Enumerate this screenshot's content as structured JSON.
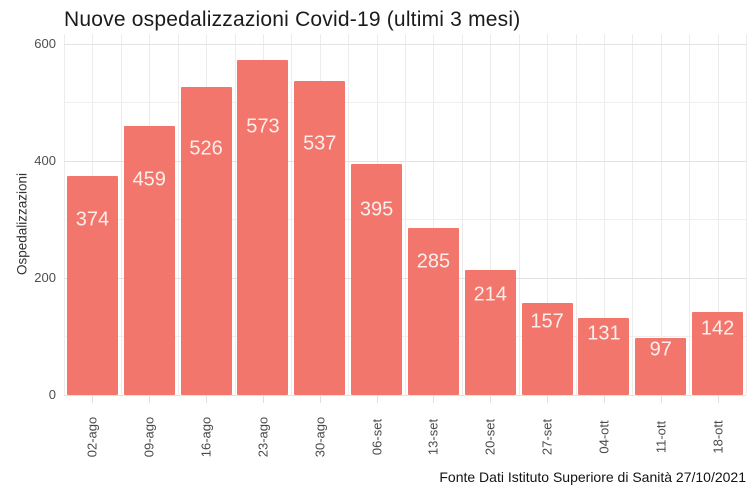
{
  "chart_data": {
    "type": "bar",
    "title": "Nuove ospedalizzazioni Covid-19 (ultimi 3 mesi)",
    "xlabel": "",
    "ylabel": "Ospedalizzazioni",
    "source_note": "Fonte Dati Istituto Superiore di Sanità 27/10/2021",
    "categories": [
      "02-ago",
      "09-ago",
      "16-ago",
      "23-ago",
      "30-ago",
      "06-set",
      "13-set",
      "20-set",
      "27-set",
      "04-ott",
      "11-ott",
      "18-ott"
    ],
    "values": [
      374,
      459,
      526,
      573,
      537,
      395,
      285,
      214,
      157,
      131,
      97,
      142
    ],
    "yticks": [
      0,
      200,
      400,
      600
    ],
    "yticks_minor": [
      100,
      300,
      500
    ],
    "ylim": [
      0,
      617
    ],
    "grid": "on",
    "legend": "none",
    "bar_color": "#f3766c",
    "bar_label_color": "#fceeec",
    "grid_major_color": "#e2e2e2",
    "grid_minor_color": "#efefef",
    "grid_vertical_color": "#ececec",
    "tick_mark_color": "#e0e0e0",
    "bar_label_position_fraction": 0.8
  }
}
